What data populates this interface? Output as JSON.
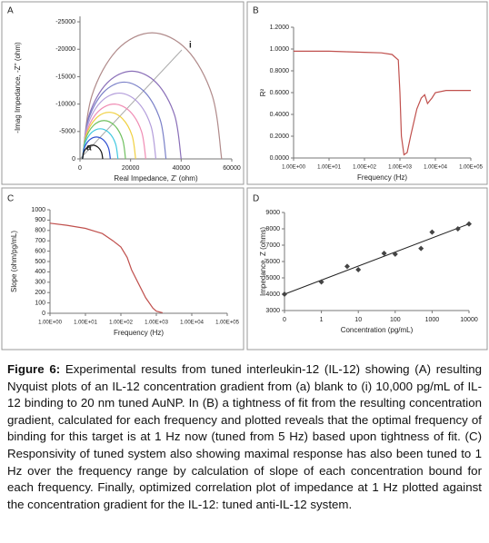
{
  "chart_data": [
    {
      "type": "line",
      "panel_label": "A",
      "x_label": "Real Impedance, Z' (ohm)",
      "y_label": "-Imag Impedance, -Z'' (ohm)",
      "xlim": [
        0,
        60000
      ],
      "xticks": [
        0,
        20000,
        40000,
        60000
      ],
      "ylim": [
        0,
        -26000
      ],
      "yticks": [
        -25000,
        -20000,
        -15000,
        -10000,
        -5000,
        0
      ],
      "annotations": [
        {
          "text": "a"
        },
        {
          "text": "i"
        }
      ],
      "series": [
        {
          "color": "#b08a8a",
          "x": [
            1000,
            4684,
            14750,
            28500,
            42250,
            52316,
            56000
          ],
          "values": [
            0,
            -11500,
            -19919,
            -23000,
            -19919,
            -11500,
            0
          ]
        },
        {
          "color": "#8a6fb8",
          "x": [
            1000,
            3613,
            10750,
            20500,
            30250,
            37387,
            40000
          ],
          "values": [
            0,
            -8000,
            -13856,
            -16000,
            -13856,
            -8000,
            0
          ]
        },
        {
          "color": "#7a80c8",
          "x": [
            1000,
            3211,
            9250,
            17500,
            25750,
            31789,
            34000
          ],
          "values": [
            0,
            -7000,
            -12124,
            -14000,
            -12124,
            -7000,
            0
          ]
        },
        {
          "color": "#b39ddb",
          "x": [
            1000,
            2943,
            8250,
            15500,
            22750,
            28057,
            30000
          ],
          "values": [
            0,
            -6000,
            -10392,
            -12000,
            -10392,
            -6000,
            0
          ]
        },
        {
          "color": "#f08cb4",
          "x": [
            1000,
            2675,
            7250,
            13500,
            19750,
            24325,
            26000
          ],
          "values": [
            0,
            -5000,
            -8660,
            -10000,
            -8660,
            -5000,
            0
          ]
        },
        {
          "color": "#f0d040",
          "x": [
            1000,
            2407,
            6250,
            11500,
            16750,
            20593,
            22000
          ],
          "values": [
            0,
            -4250,
            -7361,
            -8500,
            -7361,
            -4250,
            0
          ]
        },
        {
          "color": "#70c060",
          "x": [
            1000,
            2139,
            5250,
            9500,
            13750,
            16861,
            18000
          ],
          "values": [
            0,
            -3500,
            -6062,
            -7000,
            -6062,
            -3500,
            0
          ]
        },
        {
          "color": "#40c8e0",
          "x": [
            1000,
            1938,
            4500,
            8000,
            11500,
            14062,
            15000
          ],
          "values": [
            0,
            -2750,
            -4763,
            -5500,
            -4763,
            -2750,
            0
          ]
        },
        {
          "color": "#3050d0",
          "x": [
            1000,
            1737,
            3750,
            6500,
            9250,
            11263,
            12000
          ],
          "values": [
            0,
            -2000,
            -3464,
            -4000,
            -3464,
            -2000,
            0
          ]
        },
        {
          "color": "#111111",
          "x": [
            1000,
            1536,
            3000,
            5000,
            7000,
            8464,
            9000
          ],
          "values": [
            0,
            -1250,
            -2165,
            -2500,
            -2165,
            -1250,
            0
          ]
        }
      ]
    },
    {
      "type": "line",
      "panel_label": "B",
      "x_label": "Frequency (Hz)",
      "y_label": "R²",
      "xscale": "log",
      "xlim": [
        1,
        100000
      ],
      "xticks": [
        {
          "value": 1,
          "label": "1.00E+00"
        },
        {
          "value": 10,
          "label": "1.00E+01"
        },
        {
          "value": 100,
          "label": "1.00E+02"
        },
        {
          "value": 1000,
          "label": "1.00E+03"
        },
        {
          "value": 10000,
          "label": "1.00E+04"
        },
        {
          "value": 100000,
          "label": "1.00E+05"
        }
      ],
      "ylim": [
        0,
        1.2
      ],
      "yticks": [
        {
          "value": 0,
          "label": "0.0000"
        },
        {
          "value": 0.2,
          "label": "0.2000"
        },
        {
          "value": 0.4,
          "label": "0.4000"
        },
        {
          "value": 0.6,
          "label": "0.6000"
        },
        {
          "value": 0.8,
          "label": "0.8000"
        },
        {
          "value": 1,
          "label": "1.0000"
        },
        {
          "value": 1.2,
          "label": "1.2000"
        }
      ],
      "series": [
        {
          "color": "#c0504d",
          "x": [
            1,
            3,
            10,
            30,
            100,
            300,
            600,
            900,
            1000,
            1100,
            1300,
            1600,
            2000,
            3000,
            4000,
            5000,
            6000,
            8000,
            10000,
            20000,
            50000,
            100000
          ],
          "values": [
            0.98,
            0.98,
            0.98,
            0.975,
            0.97,
            0.965,
            0.95,
            0.9,
            0.6,
            0.2,
            0.03,
            0.05,
            0.2,
            0.45,
            0.55,
            0.58,
            0.5,
            0.55,
            0.6,
            0.62,
            0.62,
            0.62
          ]
        }
      ]
    },
    {
      "type": "line",
      "panel_label": "C",
      "x_label": "Frequency (Hz)",
      "y_label": "Slope (ohm/pg/mL)",
      "xscale": "log",
      "xlim": [
        1,
        100000
      ],
      "xticks": [
        {
          "value": 1,
          "label": "1.00E+00"
        },
        {
          "value": 10,
          "label": "1.00E+01"
        },
        {
          "value": 100,
          "label": "1.00E+02"
        },
        {
          "value": 1000,
          "label": "1.00E+03"
        },
        {
          "value": 10000,
          "label": "1.00E+04"
        },
        {
          "value": 100000,
          "label": "1.00E+05"
        }
      ],
      "ylim": [
        0,
        1000
      ],
      "yticks": [
        0,
        100,
        200,
        300,
        400,
        500,
        600,
        700,
        800,
        900,
        1000
      ],
      "series": [
        {
          "color": "#c0504d",
          "x": [
            1,
            3,
            10,
            30,
            60,
            100,
            150,
            200,
            300,
            500,
            800,
            1000,
            1500
          ],
          "values": [
            870,
            850,
            820,
            770,
            700,
            640,
            540,
            420,
            300,
            150,
            50,
            20,
            5
          ]
        }
      ]
    },
    {
      "type": "scatter",
      "panel_label": "D",
      "x_label": "Concentration (pg/mL)",
      "y_label": "Impedance, Z (ohms)",
      "xscale": "symlog",
      "xlim": [
        0,
        10000
      ],
      "xticks": [
        0,
        1,
        10,
        100,
        1000,
        10000
      ],
      "ylim": [
        3000,
        9000
      ],
      "yticks": [
        3000,
        4000,
        5000,
        6000,
        7000,
        8000,
        9000
      ],
      "series": [
        {
          "color": "#444444",
          "x": [
            0,
            1,
            5,
            10,
            50,
            100,
            500,
            1000,
            5000,
            10000
          ],
          "values": [
            4000,
            4750,
            5700,
            5500,
            6500,
            6450,
            6800,
            7800,
            8000,
            8300
          ]
        }
      ],
      "trendline": {
        "color": "#222222",
        "x": [
          0,
          10000
        ],
        "values": [
          4000,
          8300
        ]
      }
    }
  ],
  "caption": {
    "label": "Figure 6:",
    "text": " Experimental results from tuned interleukin-12 (IL-12) showing (A) resulting Nyquist plots of an IL-12 concentration gradient from (a) blank to (i) 10,000 pg/mL of IL-12 binding to 20 nm tuned AuNP. In (B) a tightness of fit from the resulting concentration gradient, calculated for each frequency and plotted reveals that the optimal frequency of binding for this target is at 1 Hz now (tuned from 5 Hz) based upon tightness of fit. (C) Responsivity of tuned system also showing maximal response has also been tuned to 1 Hz over the frequency range by calculation of slope of each concentration bound for each frequency. Finally, optimized correlation plot of impedance at 1 Hz plotted against the concentration gradient for the IL-12: tuned anti-IL-12 system."
  }
}
